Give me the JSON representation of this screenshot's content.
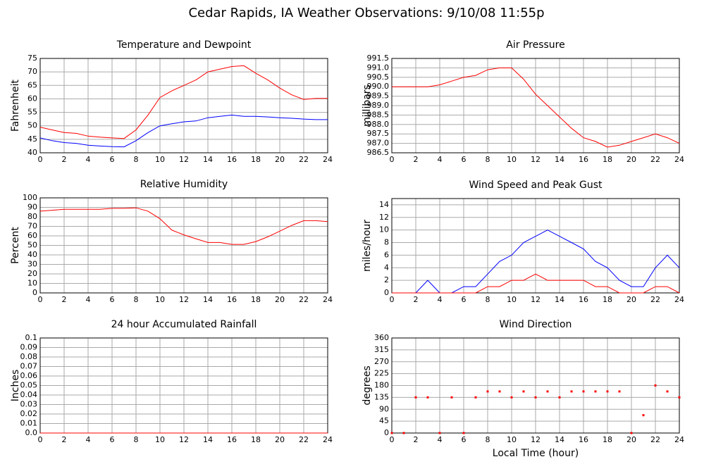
{
  "title": "Cedar Rapids, IA Weather Observations: 9/10/08 11:55p",
  "chart_data": [
    {
      "type": "line",
      "title": "Temperature and Dewpoint",
      "ylabel": "Fahrenheit",
      "x": [
        0,
        1,
        2,
        3,
        4,
        5,
        6,
        7,
        8,
        9,
        10,
        11,
        12,
        13,
        14,
        15,
        16,
        17,
        18,
        19,
        20,
        21,
        22,
        23,
        24
      ],
      "series": [
        {
          "name": "Temperature",
          "color": "#ff0000",
          "values": [
            49.5,
            48.5,
            47.5,
            47.2,
            46.2,
            45.8,
            45.5,
            45.3,
            48.5,
            54,
            60.5,
            63,
            65,
            67,
            70,
            71,
            72,
            72.3,
            69.5,
            67,
            64,
            61.5,
            59.8,
            60.2,
            60.2
          ]
        },
        {
          "name": "Dewpoint",
          "color": "#0000ff",
          "values": [
            45.5,
            44.5,
            43.8,
            43.5,
            42.8,
            42.5,
            42.3,
            42.2,
            44.5,
            47.5,
            50,
            50.8,
            51.5,
            51.8,
            53,
            53.5,
            54,
            53.5,
            53.5,
            53.3,
            53,
            52.8,
            52.5,
            52.3,
            52.3
          ]
        }
      ],
      "xlim": [
        0,
        24
      ],
      "xticks": [
        0,
        2,
        4,
        6,
        8,
        10,
        12,
        14,
        16,
        18,
        20,
        22,
        24
      ],
      "ylim": [
        40,
        75
      ],
      "yticks": [
        40,
        45,
        50,
        55,
        60,
        65,
        70,
        75
      ],
      "grid": true
    },
    {
      "type": "line",
      "title": "Air Pressure",
      "ylabel": "millibars",
      "x": [
        0,
        1,
        2,
        3,
        4,
        5,
        6,
        7,
        8,
        9,
        10,
        11,
        12,
        13,
        14,
        15,
        16,
        17,
        18,
        19,
        20,
        21,
        22,
        23,
        24
      ],
      "series": [
        {
          "name": "Pressure",
          "color": "#ff0000",
          "values": [
            990.0,
            990.0,
            990.0,
            990.0,
            990.1,
            990.3,
            990.5,
            990.6,
            990.9,
            991.0,
            991.0,
            990.4,
            989.6,
            989.0,
            988.4,
            987.8,
            987.3,
            987.1,
            986.8,
            986.9,
            987.1,
            987.3,
            987.5,
            987.3,
            987.0
          ]
        }
      ],
      "xlim": [
        0,
        24
      ],
      "xticks": [
        0,
        2,
        4,
        6,
        8,
        10,
        12,
        14,
        16,
        18,
        20,
        22,
        24
      ],
      "ylim": [
        986.5,
        991.5
      ],
      "yticks": [
        986.5,
        {
          "value": 987,
          "label": "987.0"
        },
        987.5,
        {
          "value": 988,
          "label": "988.0"
        },
        988.5,
        {
          "value": 989,
          "label": "989.0"
        },
        989.5,
        {
          "value": 990,
          "label": "990.0"
        },
        990.5,
        {
          "value": 991,
          "label": "991.0"
        },
        991.5
      ],
      "grid": true
    },
    {
      "type": "line",
      "title": "Relative Humidity",
      "ylabel": "Percent",
      "x": [
        0,
        1,
        2,
        3,
        4,
        5,
        6,
        7,
        8,
        9,
        10,
        11,
        12,
        13,
        14,
        15,
        16,
        17,
        18,
        19,
        20,
        21,
        22,
        23,
        24
      ],
      "series": [
        {
          "name": "Relative Humidity",
          "color": "#ff0000",
          "values": [
            86,
            87,
            88,
            88,
            88,
            88,
            89,
            89,
            89.5,
            86,
            78,
            66,
            61,
            57,
            53,
            53,
            51,
            51,
            54,
            59,
            65,
            71,
            76,
            76,
            75
          ]
        }
      ],
      "xlim": [
        0,
        24
      ],
      "xticks": [
        0,
        2,
        4,
        6,
        8,
        10,
        12,
        14,
        16,
        18,
        20,
        22,
        24
      ],
      "ylim": [
        0,
        100
      ],
      "yticks": [
        0,
        10,
        20,
        30,
        40,
        50,
        60,
        70,
        80,
        90,
        100
      ],
      "grid": true
    },
    {
      "type": "line",
      "title": "Wind Speed and Peak Gust",
      "ylabel": "miles/hour",
      "x": [
        0,
        1,
        2,
        3,
        4,
        5,
        6,
        7,
        8,
        9,
        10,
        11,
        12,
        13,
        14,
        15,
        16,
        17,
        18,
        19,
        20,
        21,
        22,
        23,
        24
      ],
      "series": [
        {
          "name": "Wind Speed",
          "color": "#0000ff",
          "values": [
            0,
            0,
            0,
            2,
            0,
            0,
            1,
            1,
            3,
            5,
            6,
            8,
            9,
            10,
            9,
            8,
            7,
            5,
            4,
            2,
            1,
            1,
            4,
            6,
            4
          ]
        },
        {
          "name": "Peak Gust",
          "color": "#ff0000",
          "values": [
            0,
            0,
            0,
            0,
            0,
            0,
            0,
            0,
            1,
            1,
            2,
            2,
            3,
            2,
            2,
            2,
            2,
            1,
            1,
            0,
            0,
            0,
            1,
            1,
            0
          ]
        }
      ],
      "xlim": [
        0,
        24
      ],
      "xticks": [
        0,
        2,
        4,
        6,
        8,
        10,
        12,
        14,
        16,
        18,
        20,
        22,
        24
      ],
      "ylim": [
        0,
        15
      ],
      "yticks": [
        0,
        2,
        4,
        6,
        8,
        10,
        12,
        14
      ],
      "grid": true
    },
    {
      "type": "line",
      "title": "24 hour Accumulated Rainfall",
      "ylabel": "Inches",
      "x": [
        0,
        24
      ],
      "series": [
        {
          "name": "Rainfall",
          "color": "#ff0000",
          "values": [
            0,
            0
          ]
        }
      ],
      "xlim": [
        0,
        24
      ],
      "xticks": [
        0,
        2,
        4,
        6,
        8,
        10,
        12,
        14,
        16,
        18,
        20,
        22,
        24
      ],
      "ylim": [
        0,
        0.1
      ],
      "yticks": [
        {
          "value": 0,
          "label": "0.0"
        },
        0.01,
        0.02,
        0.03,
        0.04,
        0.05,
        0.06,
        0.07,
        0.08,
        0.09,
        0.1
      ],
      "grid": true
    },
    {
      "type": "scatter",
      "title": "Wind Direction",
      "ylabel": "degrees",
      "xlabel": "Local Time (hour)",
      "x": [
        0,
        1,
        2,
        3,
        4,
        5,
        6,
        7,
        8,
        9,
        10,
        11,
        12,
        13,
        14,
        15,
        16,
        17,
        18,
        19,
        20,
        21,
        22,
        23,
        24
      ],
      "series": [
        {
          "name": "Wind Direction",
          "color": "#ff0000",
          "values": [
            0,
            0,
            135,
            135,
            0,
            135,
            0,
            135,
            157.5,
            157.5,
            135,
            157.5,
            135,
            157.5,
            135,
            157.5,
            157.5,
            157.5,
            157.5,
            157.5,
            0,
            67.5,
            180,
            157.5,
            135
          ]
        }
      ],
      "xlim": [
        0,
        24
      ],
      "xticks": [
        0,
        2,
        4,
        6,
        8,
        10,
        12,
        14,
        16,
        18,
        20,
        22,
        24
      ],
      "ylim": [
        0,
        360
      ],
      "yticks": [
        0,
        45,
        90,
        135,
        180,
        225,
        270,
        315,
        360
      ],
      "grid": true
    }
  ]
}
